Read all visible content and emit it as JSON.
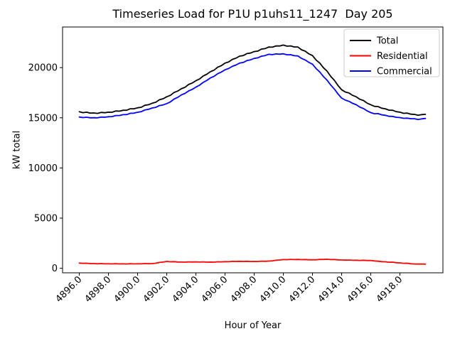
{
  "chart_data": {
    "type": "line",
    "title": "Timeseries Load for P1U p1uhs11_1247  Day 205",
    "xlabel": "Hour of Year",
    "ylabel": "kW total",
    "grid": false,
    "legend_position": "upper right",
    "legend_border_color": "#cccccc",
    "axes_color": "#000000",
    "xlim": [
      4894.85,
      4920.95
    ],
    "ylim": [
      -450,
      24050
    ],
    "xticks": [
      4896,
      4898,
      4900,
      4902,
      4904,
      4906,
      4908,
      4910,
      4912,
      4914,
      4916,
      4918
    ],
    "xtick_labels": [
      "4896.0",
      "4898.0",
      "4900.0",
      "4902.0",
      "4904.0",
      "4906.0",
      "4908.0",
      "4910.0",
      "4912.0",
      "4914.0",
      "4916.0",
      "4918.0"
    ],
    "yticks": [
      0,
      5000,
      10000,
      15000,
      20000
    ],
    "ytick_labels": [
      "0",
      "5000",
      "10000",
      "15000",
      "20000"
    ],
    "x_start": 4896.0,
    "x_step": 0.25,
    "n_points": 96,
    "series": [
      {
        "name": "Total",
        "color": "#000000",
        "values": [
          15600,
          15510,
          15560,
          15470,
          15480,
          15440,
          15540,
          15500,
          15560,
          15550,
          15680,
          15660,
          15750,
          15750,
          15900,
          15900,
          16000,
          16050,
          16250,
          16300,
          16450,
          16550,
          16800,
          16900,
          17100,
          17240,
          17520,
          17660,
          17900,
          18040,
          18320,
          18460,
          18700,
          18870,
          19170,
          19340,
          19600,
          19750,
          20050,
          20200,
          20450,
          20570,
          20820,
          20940,
          21150,
          21200,
          21400,
          21450,
          21600,
          21650,
          21850,
          21900,
          22050,
          22040,
          22170,
          22160,
          22250,
          22140,
          22170,
          22060,
          22050,
          21780,
          21640,
          21370,
          21200,
          20750,
          20450,
          19990,
          19650,
          19130,
          18740,
          18220,
          17800,
          17570,
          17470,
          17240,
          17100,
          16840,
          16720,
          16460,
          16300,
          16140,
          16120,
          15960,
          15900,
          15760,
          15750,
          15610,
          15560,
          15450,
          15470,
          15360,
          15340,
          15250,
          15320,
          15350
        ]
      },
      {
        "name": "Residential",
        "color": "#ff0000",
        "values": [
          520,
          490,
          505,
          470,
          470,
          450,
          470,
          445,
          450,
          432,
          455,
          435,
          440,
          428,
          455,
          438,
          450,
          440,
          470,
          455,
          470,
          508,
          585,
          618,
          680,
          650,
          660,
          625,
          620,
          610,
          640,
          625,
          640,
          620,
          640,
          615,
          620,
          615,
          650,
          640,
          660,
          655,
          690,
          680,
          700,
          680,
          700,
          675,
          680,
          675,
          710,
          700,
          720,
          743,
          805,
          823,
          870,
          858,
          885,
          868,
          880,
          858,
          875,
          848,
          850,
          848,
          885,
          878,
          900,
          868,
          875,
          838,
          830,
          808,
          825,
          798,
          800,
          780,
          800,
          775,
          780,
          733,
          705,
          663,
          650,
          608,
          615,
          558,
          540,
          498,
          505,
          448,
          430,
          420,
          425,
          415
        ]
      },
      {
        "name": "Commercial",
        "color": "#0000ff",
        "values": [
          15080,
          15020,
          15055,
          15000,
          15010,
          14990,
          15070,
          15055,
          15110,
          15118,
          15225,
          15225,
          15310,
          15322,
          15445,
          15462,
          15550,
          15610,
          15780,
          15845,
          15980,
          16042,
          16215,
          16282,
          16420,
          16590,
          16860,
          17035,
          17280,
          17430,
          17680,
          17835,
          18060,
          18250,
          18530,
          18725,
          18980,
          19135,
          19400,
          19560,
          19790,
          19915,
          20130,
          20260,
          20450,
          20520,
          20700,
          20775,
          20920,
          20975,
          21140,
          21200,
          21330,
          21297,
          21365,
          21337,
          21380,
          21282,
          21285,
          21192,
          21170,
          20922,
          20765,
          20522,
          20350,
          19902,
          19565,
          19112,
          18750,
          18262,
          17865,
          17382,
          16970,
          16762,
          16645,
          16442,
          16300,
          16060,
          15920,
          15685,
          15520,
          15407,
          15415,
          15297,
          15250,
          15152,
          15135,
          15052,
          15020,
          14952,
          14965,
          14912,
          14910,
          14830,
          14895,
          14935
        ]
      }
    ]
  }
}
